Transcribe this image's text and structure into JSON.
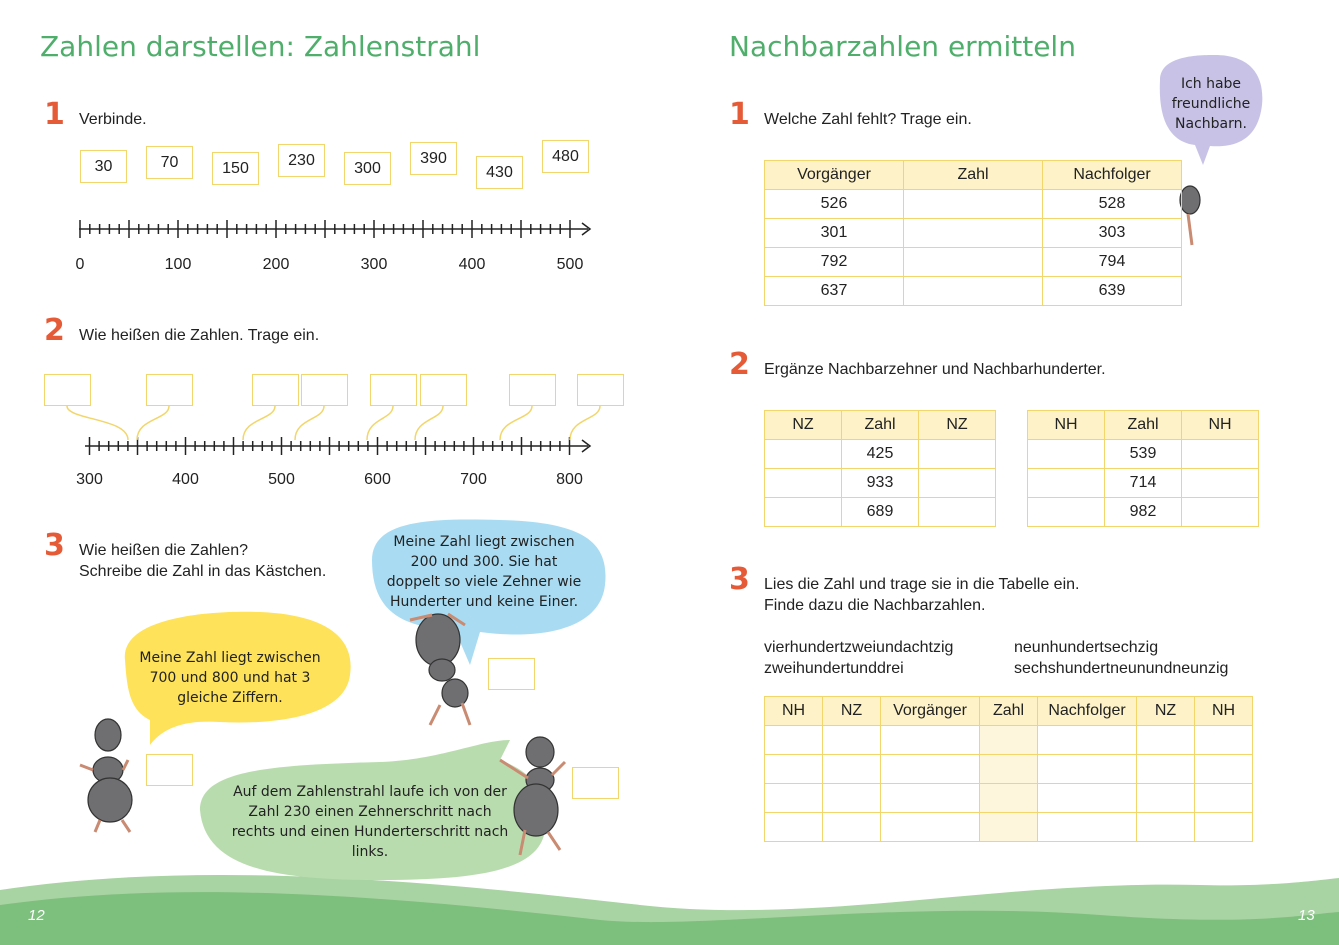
{
  "left": {
    "title": "Zahlen darstellen: Zahlenstrahl",
    "task1": {
      "number": 1,
      "text": "Verbinde.",
      "boxes": [
        30,
        70,
        150,
        230,
        300,
        390,
        430,
        480
      ],
      "axis_labels": [
        0,
        100,
        200,
        300,
        400,
        500
      ]
    },
    "task2": {
      "number": 2,
      "text": "Wie heißen die Zahlen. Trage ein.",
      "axis_labels": [
        300,
        400,
        500,
        600,
        700,
        800
      ]
    },
    "task3": {
      "number": 3,
      "lines": [
        "Wie heißen die Zahlen?",
        "Schreibe die Zahl in das Kästchen."
      ],
      "bubbles": [
        "Meine Zahl liegt zwischen 200 und 300. Sie hat doppelt so viele Zehner wie Hunderter und keine Einer.",
        "Meine Zahl liegt zwischen 700 und 800 und hat 3 gleiche Ziffern.",
        "Auf dem Zahlenstrahl laufe ich von der Zahl 230 einen Zehnerschritt nach rechts und einen Hunderterschritt nach links."
      ]
    },
    "page_number": 12
  },
  "right": {
    "title": "Nachbarzahlen ermitteln",
    "bubble": "Ich habe freundliche Nachbarn.",
    "task1": {
      "number": 1,
      "text": "Welche Zahl fehlt? Trage ein.",
      "header": [
        "Vorgänger",
        "Zahl",
        "Nachfolger"
      ],
      "rows": [
        [
          526,
          528
        ],
        [
          301,
          303
        ],
        [
          792,
          794
        ],
        [
          637,
          639
        ]
      ]
    },
    "task2": {
      "number": 2,
      "text": "Ergänze Nachbarzehner und Nachbarhunderter.",
      "nz_header": [
        "NZ",
        "Zahl",
        "NZ"
      ],
      "nz_values": [
        425,
        933,
        689
      ],
      "nh_header": [
        "NH",
        "Zahl",
        "NH"
      ],
      "nh_values": [
        539,
        714,
        982
      ]
    },
    "task3": {
      "number": 3,
      "lines": [
        "Lies die Zahl und trage sie in die Tabelle ein.",
        "Finde dazu die Nachbarzahlen."
      ],
      "words": [
        "vierhundertzweiundachtzig",
        "neunhundertsechzig",
        "zweihundertunddrei",
        "sechshundertneunundneunzig"
      ],
      "header": [
        "NH",
        "NZ",
        "Vorgänger",
        "Zahl",
        "Nachfolger",
        "NZ",
        "NH"
      ]
    },
    "page_number": 13
  }
}
